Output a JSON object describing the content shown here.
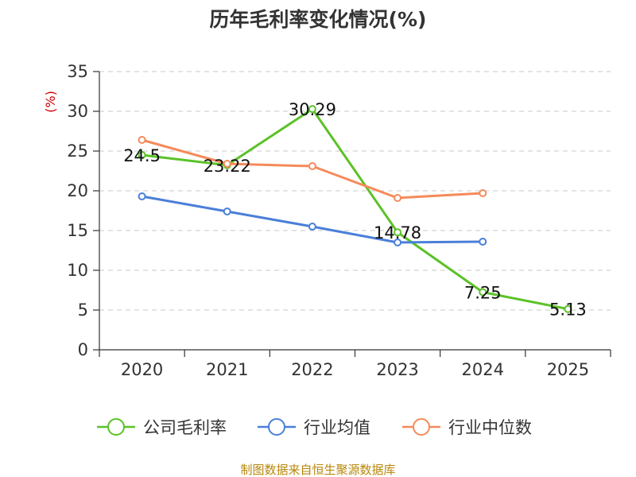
{
  "title": "历年毛利率变化情况(%)",
  "source": "制图数据来自恒生聚源数据库",
  "chart_data": {
    "type": "line",
    "title": "历年毛利率变化情况(%)",
    "ylabel": "(%)",
    "xlabel": "",
    "categories": [
      "2020",
      "2021",
      "2022",
      "2023",
      "2024",
      "2025"
    ],
    "ylim": [
      0,
      35
    ],
    "yticks": [
      0,
      5,
      10,
      15,
      20,
      25,
      30,
      35
    ],
    "grid": true,
    "legend": "bottom",
    "series": [
      {
        "name": "公司毛利率",
        "color": "#5bc228",
        "values": [
          24.5,
          23.22,
          30.29,
          14.78,
          7.25,
          5.13
        ],
        "labels": [
          "24.5",
          "23.22",
          "30.29",
          "14.78",
          "7.25",
          "5.13"
        ]
      },
      {
        "name": "行业均值",
        "color": "#4a7fd8",
        "values": [
          19.3,
          17.4,
          15.5,
          13.5,
          13.6,
          null
        ]
      },
      {
        "name": "行业中位数",
        "color": "#f58a5a",
        "values": [
          26.4,
          23.4,
          23.1,
          19.1,
          19.7,
          null
        ]
      }
    ]
  }
}
